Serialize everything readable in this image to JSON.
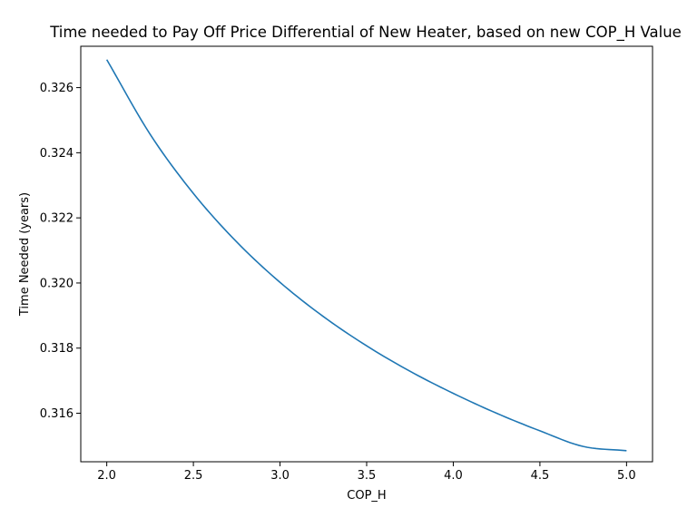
{
  "chart_data": {
    "type": "line",
    "title": "Time needed to Pay Off Price Differential of New Heater, based on new COP_H Value",
    "xlabel": "COP_H",
    "ylabel": "Time Needed (years)",
    "xlim": [
      1.85,
      5.15
    ],
    "ylim": [
      0.31451,
      0.32727
    ],
    "x_ticks": [
      2.0,
      2.5,
      3.0,
      3.5,
      4.0,
      4.5,
      5.0
    ],
    "x_tick_labels": [
      "2.0",
      "2.5",
      "3.0",
      "3.5",
      "4.0",
      "4.5",
      "5.0"
    ],
    "y_ticks": [
      0.316,
      0.318,
      0.32,
      0.322,
      0.324,
      0.326
    ],
    "y_tick_labels": [
      "0.316",
      "0.318",
      "0.320",
      "0.322",
      "0.324",
      "0.326"
    ],
    "grid": false,
    "series": [
      {
        "color": "#1f77b4",
        "x": [
          2.0,
          2.25,
          2.5,
          2.75,
          3.0,
          3.25,
          3.5,
          3.75,
          4.0,
          4.25,
          4.5,
          4.75,
          5.0
        ],
        "y": [
          0.32686,
          0.32457,
          0.32275,
          0.32126,
          0.32002,
          0.31897,
          0.31807,
          0.31729,
          0.31661,
          0.316,
          0.31546,
          0.31498,
          0.31485
        ]
      }
    ]
  }
}
